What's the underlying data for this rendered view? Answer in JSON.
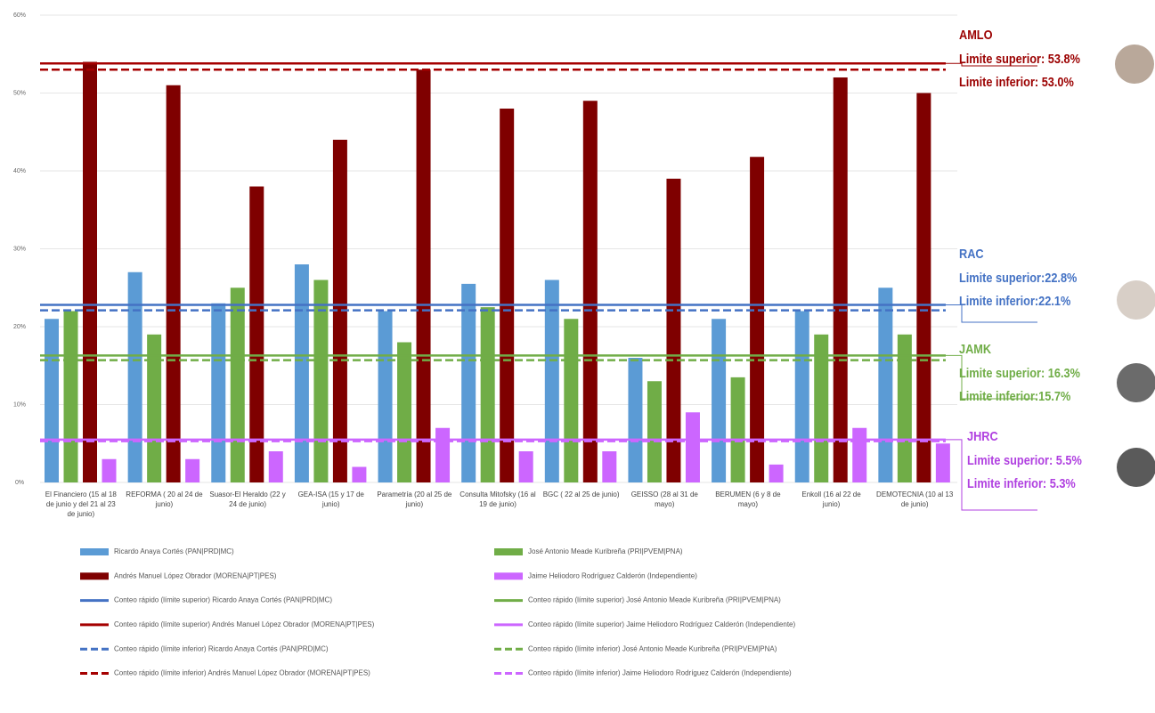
{
  "chart_data": {
    "type": "bar",
    "categories": [
      "El Financiero (15 al 18 de junio y del 21 al 23 de junio)",
      "REFORMA ( 20 al 24 de junio)",
      "Suasor-El Heraldo (22 y 24 de junio)",
      "GEA-ISA (15 y 17 de junio)",
      "Parametría (20 al 25 de junio)",
      "Consulta Mitofsky (16 al 19 de junio)",
      "BGC ( 22 al 25 de junio)",
      "GEISSO (28 al 31 de mayo)",
      "BERUMEN (6 y 8 de mayo)",
      "Enkoll (16 al 22 de junio)",
      "DEMOTECNIA (10 al 13 de junio)"
    ],
    "series": [
      {
        "name": "Ricardo Anaya Cortés (PAN|PRD|MC)",
        "color": "#5b9bd5",
        "values": [
          21,
          27,
          23,
          28,
          22,
          25.5,
          26,
          16,
          21,
          22,
          25
        ]
      },
      {
        "name": "José Antonio Meade Kuribreña (PRI|PVEM|PNA)",
        "color": "#70ad47",
        "values": [
          22,
          19,
          25,
          26,
          18,
          22.5,
          21,
          13,
          13.5,
          19,
          19
        ]
      },
      {
        "name": "Andrés Manuel López Obrador  (MORENA|PT|PES)",
        "color": "#7f0000",
        "values": [
          54,
          51,
          38,
          44,
          53,
          48,
          49,
          39,
          41.8,
          52,
          50
        ]
      },
      {
        "name": "Jaime Heliodoro Rodríguez Calderón (Independiente)",
        "color": "#cc66ff",
        "values": [
          3,
          3,
          4,
          2,
          7,
          4,
          4,
          9,
          2.3,
          7,
          5
        ]
      }
    ],
    "reference_lines": [
      {
        "name": "Conteo rápido (límite superior) Ricardo Anaya Cortés (PAN|PRD|MC)",
        "color": "#4472c4",
        "value": 22.8,
        "dashed": false
      },
      {
        "name": "Conteo rápido (límite superior) José Antonio Meade Kuribreña (PRI|PVEM|PNA)",
        "color": "#70ad47",
        "value": 16.3,
        "dashed": false
      },
      {
        "name": "Conteo rápido (límite superior) Andrés Manuel López Obrador  (MORENA|PT|PES)",
        "color": "#a50000",
        "value": 53.8,
        "dashed": false
      },
      {
        "name": "Conteo rápido (límite superior) Jaime Heliodoro Rodríguez Calderón (Independiente)",
        "color": "#cc66ff",
        "value": 5.5,
        "dashed": false
      },
      {
        "name": "Conteo rápido (límite inferior) Ricardo Anaya Cortés (PAN|PRD|MC)",
        "color": "#4472c4",
        "value": 22.1,
        "dashed": true
      },
      {
        "name": "Conteo rápido (límite inferior) José Antonio Meade Kuribreña (PRI|PVEM|PNA)",
        "color": "#70ad47",
        "value": 15.7,
        "dashed": true
      },
      {
        "name": "Conteo rápido (límite inferior) Andrés Manuel López Obrador  (MORENA|PT|PES)",
        "color": "#a50000",
        "value": 53.0,
        "dashed": true
      },
      {
        "name": "Conteo rápido (límite inferior) Jaime Heliodoro Rodríguez Calderón (Independiente)",
        "color": "#cc66ff",
        "value": 5.3,
        "dashed": true
      }
    ],
    "annotations": [
      {
        "label": "AMLO",
        "lines": [
          "Limite superior: 53.8%",
          "Limite inferior: 53.0%"
        ],
        "color": "#9b0000"
      },
      {
        "label": "RAC",
        "lines": [
          "Limite superior:22.8%",
          "Limite inferior:22.1%"
        ],
        "color": "#4472c4"
      },
      {
        "label": "JAMK",
        "lines": [
          "Limite superior: 16.3%",
          "Limite inferior:15.7%"
        ],
        "color": "#70ad47"
      },
      {
        "label": "JHRC",
        "lines": [
          "Limite superior: 5.5%",
          "Limite inferior: 5.3%"
        ],
        "color": "#b040e0"
      }
    ],
    "ylim": [
      0,
      60
    ],
    "yticks": [
      {
        "value": 0,
        "label": "0%"
      },
      {
        "value": 10,
        "label": "10%"
      },
      {
        "value": 20,
        "label": "20%"
      },
      {
        "value": 30,
        "label": "30%"
      },
      {
        "value": 40,
        "label": "40%"
      },
      {
        "value": 50,
        "label": "50%"
      },
      {
        "value": 60,
        "label": "60%"
      }
    ],
    "grid": true
  }
}
